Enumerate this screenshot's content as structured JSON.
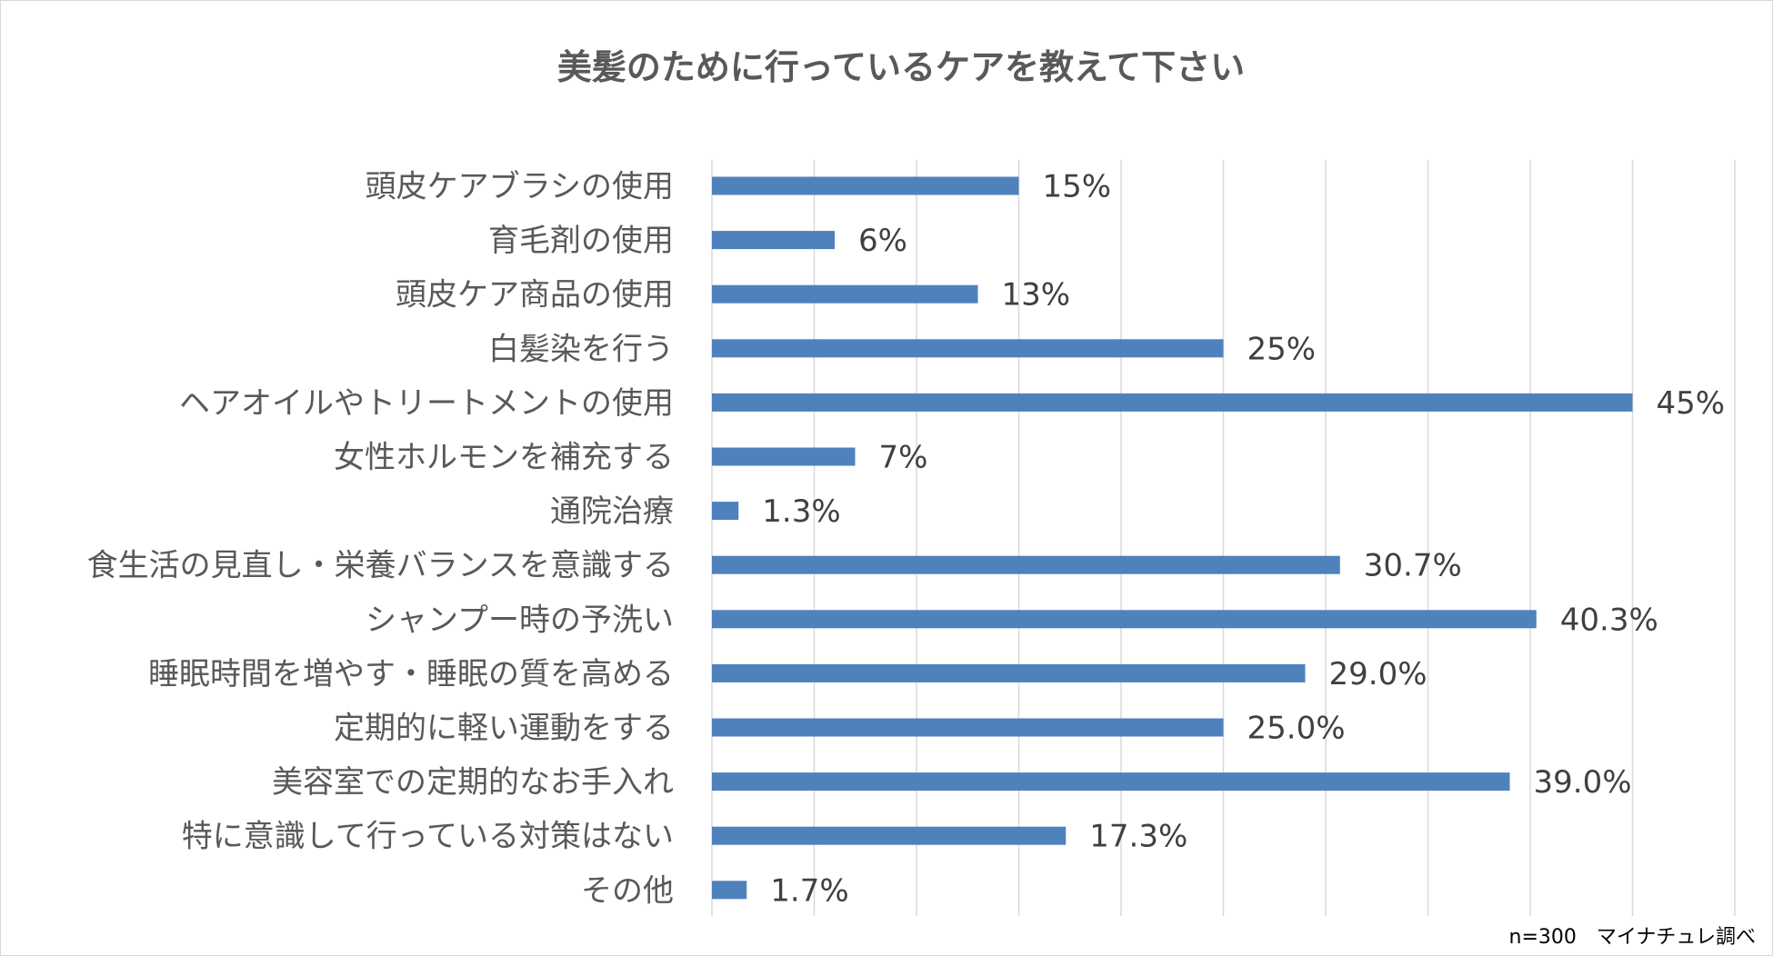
{
  "chart_data": {
    "type": "bar",
    "orientation": "horizontal",
    "title": "美髪のために行っているケアを教えて下さい",
    "xlabel": "",
    "ylabel": "",
    "xlim": [
      0,
      50
    ],
    "gridlines": "vertical",
    "legend": "none",
    "bar_color": "#4f81bd",
    "categories": [
      "頭皮ケアブラシの使用",
      "育毛剤の使用",
      "頭皮ケア商品の使用",
      "白髪染を行う",
      "ヘアオイルやトリートメントの使用",
      "女性ホルモンを補充する",
      "通院治療",
      "食生活の見直し・栄養バランスを意識する",
      "シャンプー時の予洗い",
      "睡眠時間を増やす・睡眠の質を高める",
      "定期的に軽い運動をする",
      "美容室での定期的なお手入れ",
      "特に意識して行っている対策はない",
      "その他"
    ],
    "values": [
      15,
      6,
      13,
      25,
      45,
      7,
      1.3,
      30.7,
      40.3,
      29.0,
      25.0,
      39.0,
      17.3,
      1.7
    ],
    "data_labels": [
      "15%",
      "6%",
      "13%",
      "25%",
      "45%",
      "7%",
      "1.3%",
      "30.7%",
      "40.3%",
      "29.0%",
      "25.0%",
      "39.0%",
      "17.3%",
      "1.7%"
    ],
    "note": "n=300　マイナチュレ調べ"
  }
}
